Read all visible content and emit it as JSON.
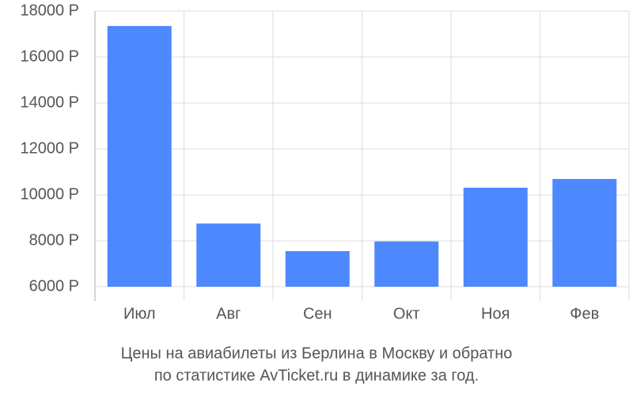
{
  "chart_data": {
    "type": "bar",
    "title": [
      "Цены на авиабилеты из Берлина в Москву и обратно",
      "по статистике AvTicket.ru в динамике за год."
    ],
    "categories": [
      "Июл",
      "Авг",
      "Сен",
      "Окт",
      "Ноя",
      "Фев"
    ],
    "values": [
      17350,
      8750,
      7550,
      7970,
      10310,
      10690
    ],
    "color": "#4d88ff",
    "ylim": [
      6000,
      18000
    ],
    "yticks": [
      {
        "value": 6000,
        "label": "6000 Р"
      },
      {
        "value": 8000,
        "label": "8000 Р"
      },
      {
        "value": 10000,
        "label": "10000 Р"
      },
      {
        "value": 12000,
        "label": "12000 Р"
      },
      {
        "value": 14000,
        "label": "14000 Р"
      },
      {
        "value": 16000,
        "label": "16000 Р"
      },
      {
        "value": 18000,
        "label": "18000 Р"
      }
    ],
    "grid": true
  }
}
